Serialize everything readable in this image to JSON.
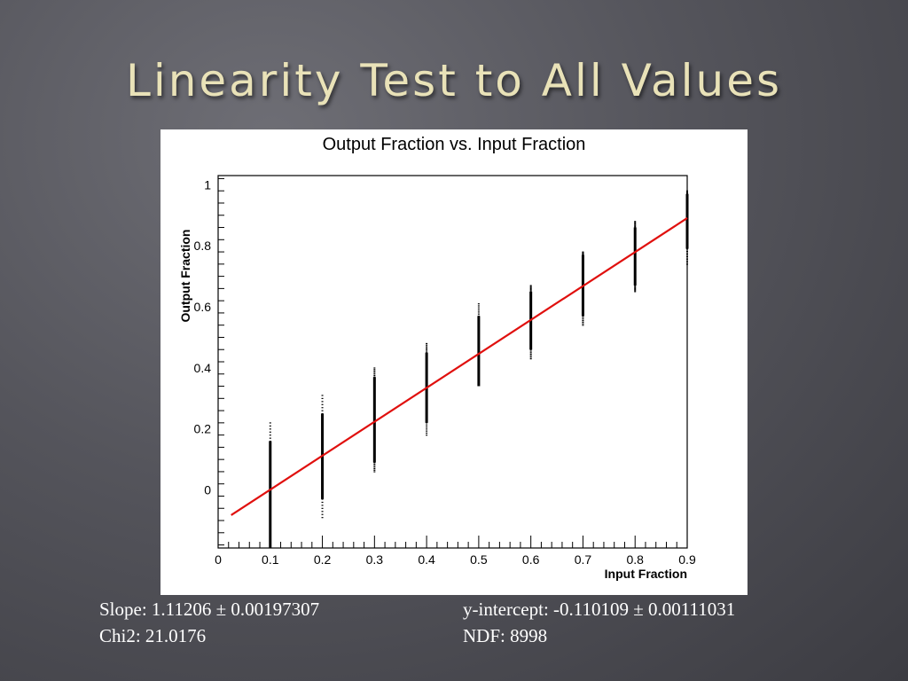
{
  "slide": {
    "title": "Linearity Test to All Values"
  },
  "stats": {
    "slope": "Slope: 1.11206 ± 0.00197307",
    "chi2": "Chi2: 21.0176",
    "intercept": "y-intercept: -0.110109 ± 0.00111031",
    "ndf": "NDF: 8998"
  },
  "chart_data": {
    "type": "scatter",
    "title": "Output Fraction vs. Input Fraction",
    "xlabel": "Input Fraction",
    "ylabel": "Output Fraction",
    "xlim": [
      0,
      0.9
    ],
    "ylim": [
      -0.19,
      1.03
    ],
    "xticks": [
      "0",
      "0.1",
      "0.2",
      "0.3",
      "0.4",
      "0.5",
      "0.6",
      "0.7",
      "0.8",
      "0.9"
    ],
    "yticks": [
      "0",
      "0.2",
      "0.4",
      "0.6",
      "0.8",
      "1"
    ],
    "grid": false,
    "colors": {
      "points": "#000000",
      "fit": "#e0100e"
    },
    "point_ranges": [
      {
        "x": 0.1,
        "ymin": -0.19,
        "ymax": 0.16,
        "outlier_min": -0.19,
        "outlier_max": 0.22
      },
      {
        "x": 0.2,
        "ymin": -0.03,
        "ymax": 0.25,
        "outlier_min": -0.09,
        "outlier_max": 0.31
      },
      {
        "x": 0.3,
        "ymin": 0.09,
        "ymax": 0.37,
        "outlier_min": 0.06,
        "outlier_max": 0.4
      },
      {
        "x": 0.4,
        "ymin": 0.22,
        "ymax": 0.45,
        "outlier_min": 0.18,
        "outlier_max": 0.48
      },
      {
        "x": 0.5,
        "ymin": 0.34,
        "ymax": 0.57,
        "outlier_min": 0.34,
        "outlier_max": 0.61
      },
      {
        "x": 0.6,
        "ymin": 0.46,
        "ymax": 0.65,
        "outlier_min": 0.43,
        "outlier_max": 0.67
      },
      {
        "x": 0.7,
        "ymin": 0.57,
        "ymax": 0.77,
        "outlier_min": 0.54,
        "outlier_max": 0.78
      },
      {
        "x": 0.8,
        "ymin": 0.67,
        "ymax": 0.86,
        "outlier_min": 0.65,
        "outlier_max": 0.88
      },
      {
        "x": 0.9,
        "ymin": 0.79,
        "ymax": 0.97,
        "outlier_min": 0.74,
        "outlier_max": 0.98
      }
    ],
    "fit": {
      "slope": 1.11206,
      "intercept": -0.110109,
      "x_range": [
        0.025,
        0.9
      ]
    }
  }
}
